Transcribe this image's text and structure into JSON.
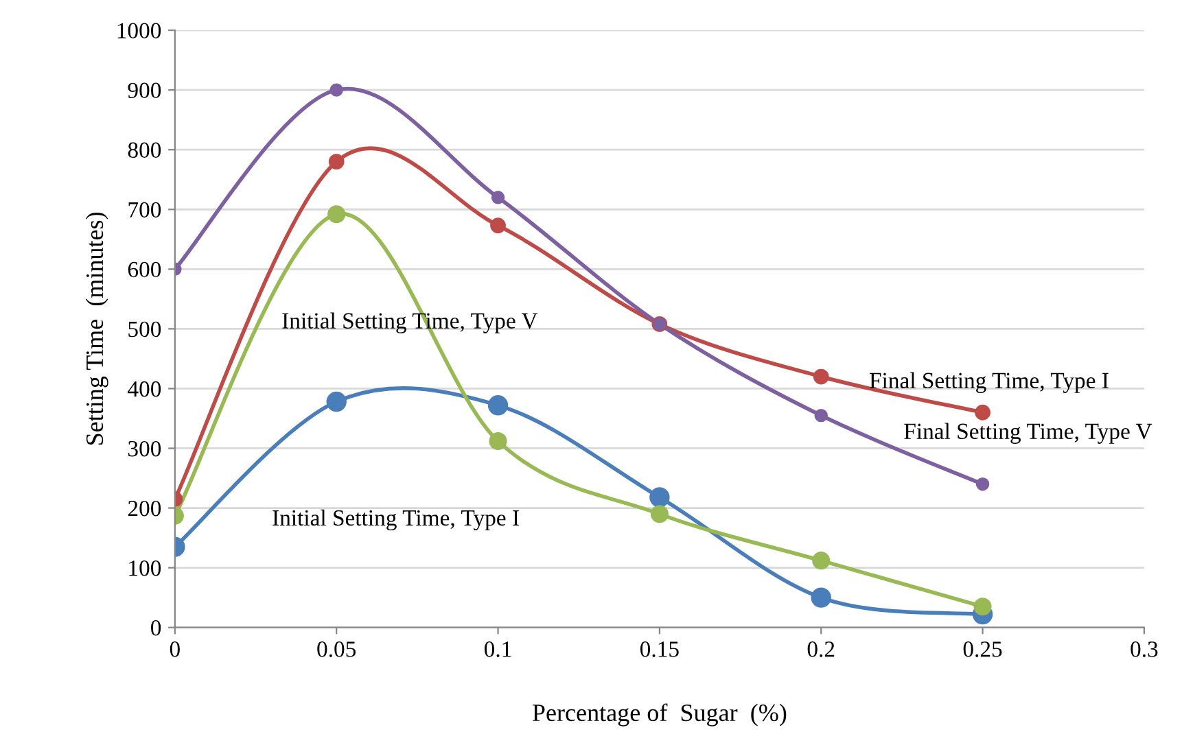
{
  "chart_data": {
    "type": "line",
    "xlabel": "Percentage of  Sugar  (%)",
    "ylabel": "Setting Time  (minutes)",
    "x": [
      0,
      0.05,
      0.1,
      0.15,
      0.2,
      0.25
    ],
    "series": [
      {
        "name": "Initial Setting Time, Type I",
        "color": "#4a7ebb",
        "values": [
          135,
          378,
          372,
          218,
          50,
          22
        ]
      },
      {
        "name": "Initial Setting Time, Type V",
        "color": "#98b954",
        "values": [
          187,
          692,
          312,
          190,
          112,
          35
        ]
      },
      {
        "name": "Final Setting Time, Type I",
        "color": "#be4b48",
        "values": [
          215,
          780,
          673,
          508,
          420,
          360
        ]
      },
      {
        "name": "Final Setting Time, Type V",
        "color": "#7d60a0",
        "values": [
          600,
          900,
          720,
          508,
          355,
          240
        ]
      }
    ],
    "xlim": [
      0,
      0.3
    ],
    "xticks": [
      0,
      0.05,
      0.1,
      0.15,
      0.2,
      0.25,
      0.3
    ],
    "ylim": [
      0,
      1000
    ],
    "yticks": [
      0,
      100,
      200,
      300,
      400,
      500,
      600,
      700,
      800,
      900,
      1000
    ],
    "grid": "y",
    "marker": "circle",
    "line_style": "solid",
    "legend": false
  }
}
